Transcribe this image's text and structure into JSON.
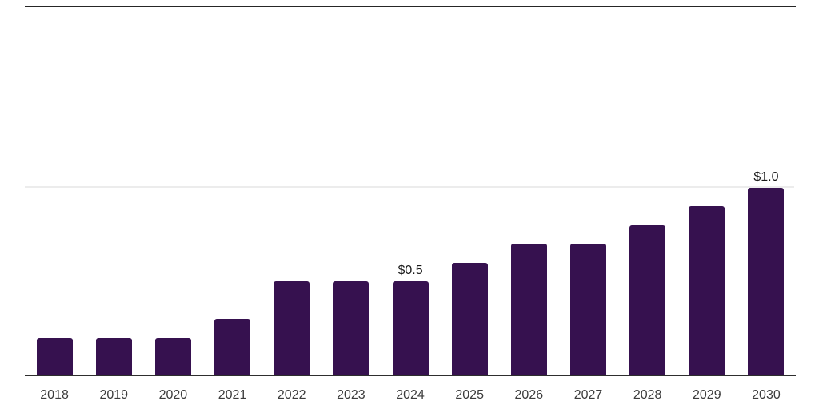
{
  "chart_data": {
    "type": "bar",
    "title": "",
    "xlabel": "",
    "ylabel": "",
    "categories": [
      "2018",
      "2019",
      "2020",
      "2021",
      "2022",
      "2023",
      "2024",
      "2025",
      "2026",
      "2027",
      "2028",
      "2029",
      "2030"
    ],
    "values": [
      0.2,
      0.2,
      0.2,
      0.3,
      0.5,
      0.5,
      0.5,
      0.6,
      0.7,
      0.7,
      0.8,
      0.9,
      1.0
    ],
    "data_labels": [
      {
        "category": "2024",
        "text": "$0.5"
      },
      {
        "category": "2030",
        "text": "$1.0"
      }
    ],
    "ylim": [
      0,
      1.0
    ],
    "y_gridlines": [
      1.0
    ],
    "legend_position": "none",
    "grid": "single horizontal gridline at y=1.0",
    "colors": {
      "bar": "#36114F",
      "axis_line": "#2e2e2e",
      "top_border": "#262626",
      "gridline": "#ececec",
      "value_label": "#1a1a1a",
      "tick_label": "#3c3c3c",
      "background": "#ffffff"
    }
  }
}
